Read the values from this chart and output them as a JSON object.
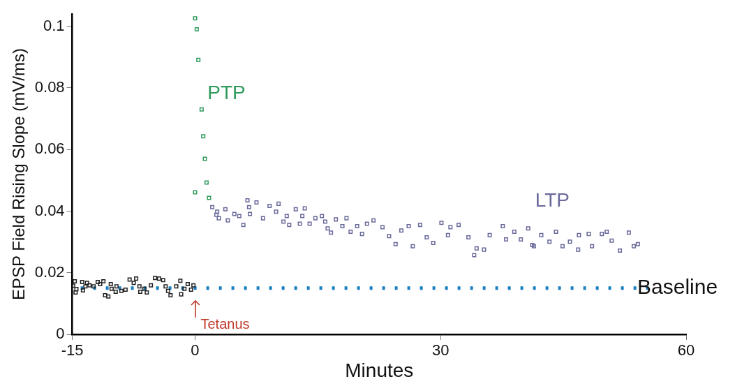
{
  "chart_data": {
    "type": "scatter",
    "xlabel": "Minutes",
    "ylabel": "EPSP Field Rising Slope (mV/ms)",
    "xlim": [
      -15,
      60
    ],
    "xticks": [
      -15,
      0,
      30,
      60
    ],
    "ylim": [
      0,
      0.104
    ],
    "yticks": [
      0,
      0.02,
      0.04,
      0.06,
      0.08,
      0.1
    ],
    "grid": false,
    "legend": false,
    "marker": "square",
    "series": [
      {
        "color": "#222222",
        "x": [
          -14.7,
          -14.9,
          -14.5,
          -14.6,
          -13.8,
          -13.2,
          -13.4,
          -13.7,
          -12.9,
          -12.4,
          -11.9,
          -11.6,
          -11.2,
          -11.0,
          -10.6,
          -10.2,
          -10.3,
          -9.6,
          -9.7,
          -9.0,
          -8.5,
          -8.0,
          -7.2,
          -7.5,
          -6.8,
          -6.7,
          -6.2,
          -5.9,
          -5.4,
          -4.9,
          -4.4,
          -3.9,
          -3.6,
          -3.3,
          -3.0,
          -2.3,
          -1.8,
          -1.7,
          -1.3,
          -0.9,
          -0.5,
          -0.2
        ],
        "values": [
          0.0172,
          0.0158,
          0.0147,
          0.0136,
          0.017,
          0.0167,
          0.0156,
          0.0143,
          0.0159,
          0.0156,
          0.017,
          0.0163,
          0.0172,
          0.0127,
          0.0123,
          0.0148,
          0.0163,
          0.0156,
          0.0138,
          0.0141,
          0.0145,
          0.0178,
          0.0181,
          0.0167,
          0.0156,
          0.0138,
          0.0148,
          0.0136,
          0.0159,
          0.0183,
          0.0181,
          0.0176,
          0.0156,
          0.0141,
          0.0127,
          0.0156,
          0.0174,
          0.013,
          0.0148,
          0.0163,
          0.0145,
          0.0159
        ]
      },
      {
        "name": "PTP",
        "color": "#2f9a5c",
        "x": [
          0,
          0.2,
          0.4,
          0.8,
          1.0,
          1.2,
          1.4,
          0,
          1.7
        ],
        "values": [
          0.1026,
          0.099,
          0.0891,
          0.073,
          0.0643,
          0.057,
          0.0493,
          0.0461,
          0.0443
        ]
      },
      {
        "name": "LTP",
        "color": "#6a6a9c",
        "x": [
          2.1,
          2.7,
          2.6,
          2.9,
          3.7,
          4.0,
          4.8,
          5.4,
          5.9,
          6.4,
          6.6,
          7.5,
          6.7,
          8.3,
          9.1,
          10.2,
          9.9,
          11.2,
          10.8,
          11.5,
          12.3,
          13.4,
          13.1,
          12.8,
          14.0,
          14.7,
          15.5,
          15.9,
          16.2,
          16.6,
          17.2,
          18.0,
          18.5,
          19.0,
          19.8,
          20.4,
          21.0,
          21.8,
          22.9,
          23.7,
          24.5,
          25.2,
          26.1,
          27.5,
          26.6,
          28.3,
          29.1,
          30.1,
          31.2,
          32.2,
          30.9,
          33.4,
          34.4,
          34.1,
          35.3,
          36.0,
          37.6,
          38.0,
          39.0,
          39.8,
          40.7,
          41.2,
          41.4,
          42.3,
          43.3,
          44.1,
          44.9,
          45.8,
          46.8,
          46.9,
          48.1,
          48.5,
          49.7,
          50.3,
          50.9,
          51.9,
          53.0,
          53.6,
          54.1
        ],
        "values": [
          0.0413,
          0.0398,
          0.0388,
          0.0377,
          0.0406,
          0.037,
          0.0391,
          0.0384,
          0.0355,
          0.0435,
          0.0413,
          0.0428,
          0.0391,
          0.0377,
          0.0417,
          0.0424,
          0.0398,
          0.0384,
          0.0366,
          0.0355,
          0.0406,
          0.0409,
          0.0384,
          0.0359,
          0.0359,
          0.0377,
          0.0384,
          0.0366,
          0.0344,
          0.033,
          0.0373,
          0.0351,
          0.0377,
          0.0333,
          0.0351,
          0.0326,
          0.0359,
          0.037,
          0.0348,
          0.0319,
          0.0293,
          0.0337,
          0.0351,
          0.0355,
          0.0286,
          0.0315,
          0.0297,
          0.0362,
          0.0348,
          0.0355,
          0.0322,
          0.0315,
          0.0279,
          0.0257,
          0.0275,
          0.0322,
          0.0351,
          0.0308,
          0.0333,
          0.0308,
          0.0344,
          0.029,
          0.0286,
          0.0322,
          0.0301,
          0.0333,
          0.0286,
          0.0301,
          0.0275,
          0.0322,
          0.0326,
          0.0286,
          0.0326,
          0.0333,
          0.0304,
          0.0272,
          0.033,
          0.0286,
          0.0293
        ]
      }
    ],
    "ref_lines": [
      {
        "axis": "y",
        "value": 0.015,
        "label": "Baseline",
        "color": "#1a7fc1",
        "line_style": "dotted"
      }
    ],
    "annotations": [
      "Tetanus"
    ]
  }
}
